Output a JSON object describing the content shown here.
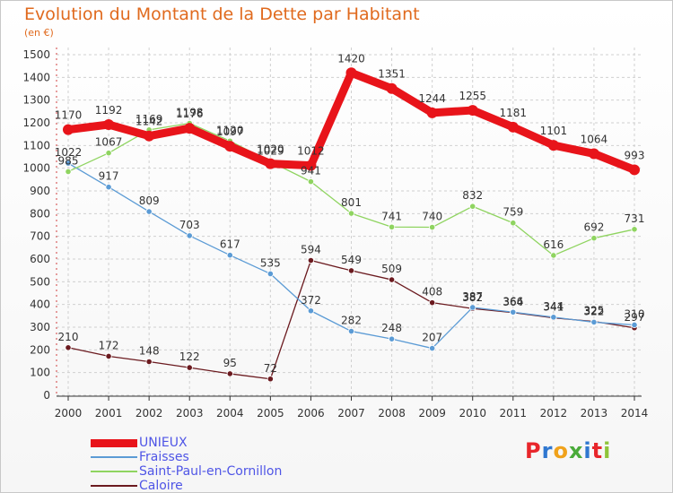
{
  "chart_data": {
    "type": "line",
    "title": "Evolution du Montant de la Dette par Habitant",
    "subtitle": "(en €)",
    "categories": [
      "2000",
      "2001",
      "2002",
      "2003",
      "2004",
      "2005",
      "2006",
      "2007",
      "2008",
      "2009",
      "2010",
      "2011",
      "2012",
      "2013",
      "2014"
    ],
    "ylim": [
      0,
      1500
    ],
    "yticks": [
      0,
      100,
      200,
      300,
      400,
      500,
      600,
      700,
      800,
      900,
      1000,
      1100,
      1200,
      1300,
      1400,
      1500
    ],
    "grid": true,
    "legend_position": "bottom-left",
    "series": [
      {
        "name": "UNIEUX",
        "color": "#e8141a",
        "values": [
          1170,
          1192,
          1142,
          1176,
          1097,
          1020,
          1012,
          1420,
          1351,
          1244,
          1255,
          1181,
          1101,
          1064,
          993
        ]
      },
      {
        "name": "Fraisses",
        "color": "#5b9bd5",
        "values": [
          1022,
          917,
          809,
          703,
          617,
          535,
          372,
          282,
          248,
          207,
          387,
          366,
          344,
          322,
          310
        ]
      },
      {
        "name": "Saint-Paul-en-Cornillon",
        "color": "#8fd460",
        "values": [
          985,
          1067,
          1169,
          1198,
          1120,
          1029,
          941,
          801,
          741,
          740,
          832,
          759,
          616,
          692,
          731
        ]
      },
      {
        "name": "Caloire",
        "color": "#6b1a1f",
        "values": [
          210,
          172,
          148,
          122,
          95,
          72,
          594,
          549,
          509,
          408,
          382,
          364,
          341,
          325,
          297
        ]
      }
    ]
  },
  "logo": {
    "text": "Proxiti",
    "letters": [
      "P",
      "r",
      "o",
      "x",
      "i",
      "t",
      "i"
    ],
    "colors": [
      "#e8262b",
      "#2f77d0",
      "#f0a21b",
      "#4aab3a",
      "#2f77d0",
      "#e8262b",
      "#8fc43a"
    ]
  }
}
